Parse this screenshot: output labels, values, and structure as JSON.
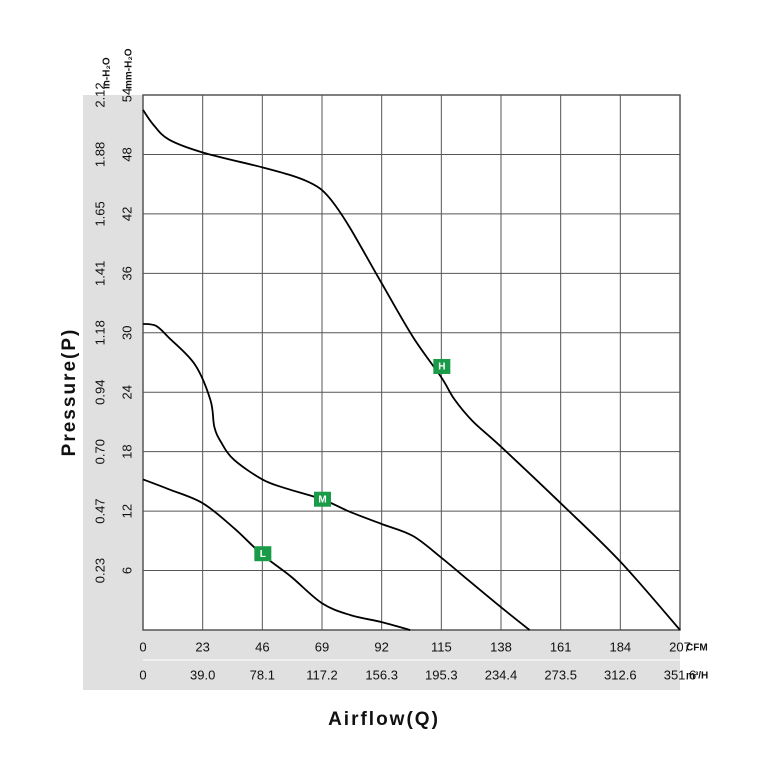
{
  "chart_data": {
    "type": "line",
    "xlabel": "Airflow(Q)",
    "ylabel": "Pressure(P)",
    "x_unit_primary": "CFM",
    "x_unit_secondary": "m³/H",
    "y_unit_primary": "mm-H₂O",
    "y_unit_secondary": "in-H₂O",
    "xlim": [
      0,
      207
    ],
    "ylim": [
      0,
      54
    ],
    "grid": true,
    "x_ticks": [
      "0",
      "23",
      "46",
      "69",
      "92",
      "115",
      "138",
      "161",
      "184",
      "207"
    ],
    "x_ticks_secondary": [
      "0",
      "39.0",
      "78.1",
      "117.2",
      "156.3",
      "195.3",
      "234.4",
      "273.5",
      "312.6",
      "351.6"
    ],
    "y_ticks": [
      "6",
      "12",
      "18",
      "24",
      "30",
      "36",
      "42",
      "48",
      "54"
    ],
    "y_ticks_secondary": [
      "0.23",
      "0.47",
      "0.70",
      "0.94",
      "1.18",
      "1.41",
      "1.65",
      "1.88",
      "2.12"
    ],
    "series": [
      {
        "name": "H",
        "color": "#000000",
        "x": [
          0,
          4,
          10,
          23,
          46,
          57,
          64,
          69,
          74,
          80,
          92,
          104,
          115,
          120,
          127,
          138,
          161,
          184,
          207
        ],
        "y": [
          52.5,
          51,
          49.5,
          48.2,
          46.7,
          45.9,
          45.2,
          44.4,
          42.9,
          40.5,
          35,
          29.6,
          25.5,
          23.3,
          21.1,
          18.5,
          12.8,
          6.9,
          0
        ],
        "label_x": 115,
        "label_y": 26.6
      },
      {
        "name": "M",
        "color": "#000000",
        "x": [
          0,
          5,
          10,
          20,
          26,
          27.5,
          30,
          35,
          46,
          55,
          69,
          80,
          92,
          104,
          115,
          126,
          138,
          149
        ],
        "y": [
          30.9,
          30.7,
          29.5,
          26.8,
          23.2,
          20.5,
          19,
          17.2,
          15.2,
          14.3,
          13.2,
          11.9,
          10.7,
          9.5,
          7.3,
          4.9,
          2.3,
          0
        ],
        "label_x": 69,
        "label_y": 13.2
      },
      {
        "name": "L",
        "color": "#000000",
        "x": [
          0,
          10,
          23,
          35,
          46,
          57,
          69,
          80,
          92,
          103
        ],
        "y": [
          15.2,
          14.2,
          12.8,
          10.3,
          7.6,
          5.4,
          2.7,
          1.5,
          0.8,
          0
        ],
        "label_x": 46,
        "label_y": 7.7
      }
    ]
  }
}
